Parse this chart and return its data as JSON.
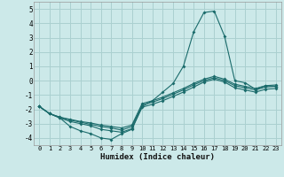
{
  "xlabel": "Humidex (Indice chaleur)",
  "xlim": [
    -0.5,
    23.5
  ],
  "ylim": [
    -4.5,
    5.5
  ],
  "xticks": [
    0,
    1,
    2,
    3,
    4,
    5,
    6,
    7,
    8,
    9,
    10,
    11,
    12,
    13,
    14,
    15,
    16,
    17,
    18,
    19,
    20,
    21,
    22,
    23
  ],
  "yticks": [
    -4,
    -3,
    -2,
    -1,
    0,
    1,
    2,
    3,
    4,
    5
  ],
  "background_color": "#cce9e9",
  "grid_color": "#aad0d0",
  "line_color": "#1a6b6b",
  "spike_x": [
    0,
    1,
    2,
    3,
    4,
    5,
    6,
    7,
    8,
    9,
    10,
    11,
    12,
    13,
    14,
    15,
    16,
    17,
    18,
    19,
    20,
    21,
    22,
    23
  ],
  "spike_y": [
    -1.8,
    -2.3,
    -2.6,
    -3.2,
    -3.5,
    -3.7,
    -4.0,
    -4.1,
    -3.7,
    -3.4,
    -1.8,
    -1.4,
    -0.8,
    -0.2,
    1.0,
    3.4,
    4.75,
    4.85,
    3.1,
    0.0,
    -0.15,
    -0.6,
    -0.35,
    -0.4
  ],
  "linear1_x": [
    0,
    1,
    2,
    3,
    4,
    5,
    6,
    7,
    8,
    9,
    10,
    11,
    12,
    13,
    14,
    15,
    16,
    17,
    18,
    19,
    20,
    21,
    22,
    23
  ],
  "linear1_y": [
    -1.8,
    -2.3,
    -2.6,
    -2.85,
    -3.0,
    -3.15,
    -3.4,
    -3.5,
    -3.6,
    -3.35,
    -1.85,
    -1.65,
    -1.4,
    -1.1,
    -0.8,
    -0.45,
    -0.1,
    0.1,
    -0.1,
    -0.5,
    -0.65,
    -0.8,
    -0.6,
    -0.55
  ],
  "linear2_x": [
    0,
    1,
    2,
    3,
    4,
    5,
    6,
    7,
    8,
    9,
    10,
    11,
    12,
    13,
    14,
    15,
    16,
    17,
    18,
    19,
    20,
    21,
    22,
    23
  ],
  "linear2_y": [
    -1.8,
    -2.3,
    -2.55,
    -2.75,
    -2.9,
    -3.05,
    -3.2,
    -3.3,
    -3.45,
    -3.2,
    -1.7,
    -1.5,
    -1.25,
    -0.95,
    -0.65,
    -0.3,
    0.0,
    0.2,
    0.0,
    -0.35,
    -0.5,
    -0.65,
    -0.45,
    -0.4
  ],
  "linear3_x": [
    0,
    1,
    2,
    3,
    4,
    5,
    6,
    7,
    8,
    9,
    10,
    11,
    12,
    13,
    14,
    15,
    16,
    17,
    18,
    19,
    20,
    21,
    22,
    23
  ],
  "linear3_y": [
    -1.8,
    -2.3,
    -2.55,
    -2.7,
    -2.85,
    -2.95,
    -3.1,
    -3.2,
    -3.3,
    -3.1,
    -1.6,
    -1.4,
    -1.15,
    -0.85,
    -0.55,
    -0.2,
    0.1,
    0.3,
    0.1,
    -0.25,
    -0.4,
    -0.55,
    -0.35,
    -0.3
  ]
}
